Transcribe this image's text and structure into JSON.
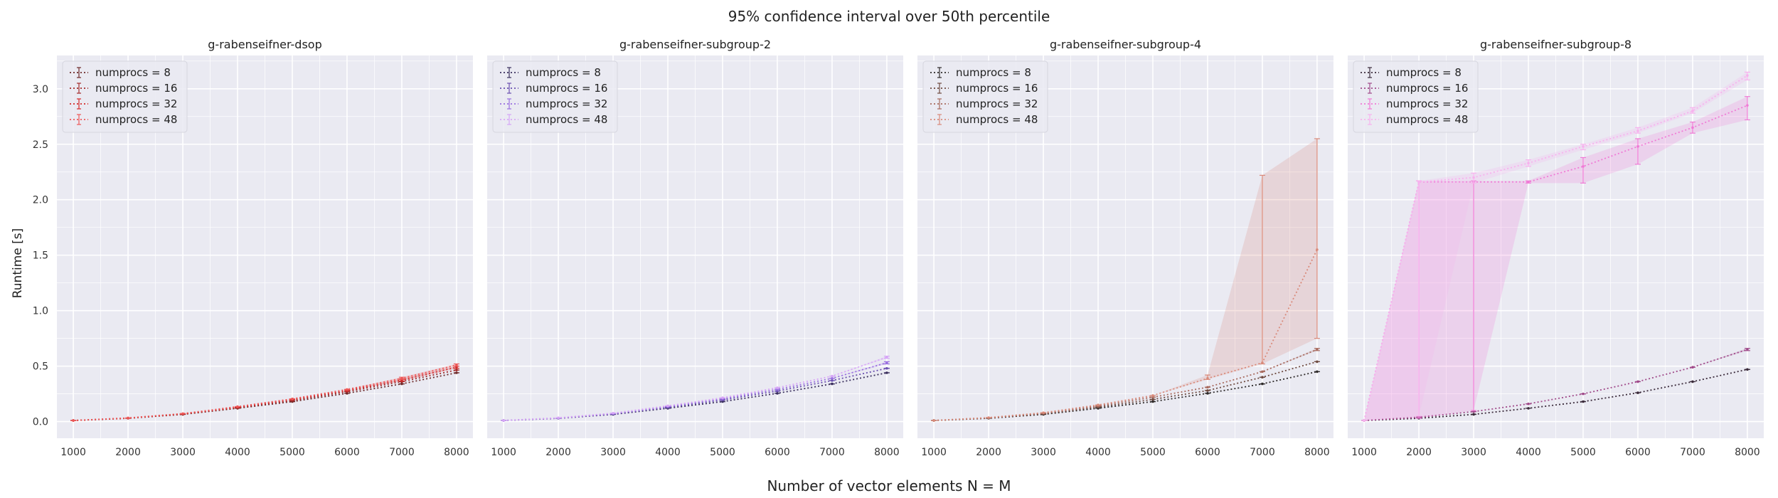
{
  "figure": {
    "title": "95% confidence interval over 50th percentile",
    "xlabel": "Number of vector elements N = M",
    "ylabel": "Runtime [s]"
  },
  "chart_data": [
    {
      "type": "line",
      "title": "g-rabenseifner-dsop",
      "x": [
        1000,
        2000,
        3000,
        4000,
        5000,
        6000,
        7000,
        8000
      ],
      "xticks": [
        1000,
        2000,
        3000,
        4000,
        5000,
        6000,
        7000,
        8000
      ],
      "yticks": [
        "0.0",
        "0.5",
        "1.0",
        "1.5",
        "2.0",
        "2.5",
        "3.0"
      ],
      "ylim": [
        -0.15,
        3.3
      ],
      "legend_position": "upper-left",
      "grid": true,
      "series": [
        {
          "name": "numprocs = 8",
          "color": "#6e2a2a",
          "median": [
            0.01,
            0.03,
            0.065,
            0.12,
            0.18,
            0.255,
            0.34,
            0.44
          ],
          "lower": [
            0.01,
            0.03,
            0.065,
            0.12,
            0.18,
            0.255,
            0.34,
            0.44
          ],
          "upper": [
            0.01,
            0.03,
            0.065,
            0.12,
            0.18,
            0.255,
            0.34,
            0.44
          ]
        },
        {
          "name": "numprocs = 16",
          "color": "#a32a2a",
          "median": [
            0.01,
            0.03,
            0.068,
            0.125,
            0.19,
            0.27,
            0.36,
            0.465
          ],
          "lower": [
            0.01,
            0.03,
            0.068,
            0.125,
            0.19,
            0.27,
            0.36,
            0.465
          ],
          "upper": [
            0.01,
            0.03,
            0.068,
            0.125,
            0.19,
            0.27,
            0.36,
            0.465
          ]
        },
        {
          "name": "numprocs = 32",
          "color": "#d42a2a",
          "median": [
            0.01,
            0.032,
            0.07,
            0.13,
            0.2,
            0.28,
            0.375,
            0.49
          ],
          "lower": [
            0.01,
            0.032,
            0.07,
            0.13,
            0.2,
            0.28,
            0.365,
            0.48
          ],
          "upper": [
            0.01,
            0.032,
            0.07,
            0.13,
            0.2,
            0.28,
            0.385,
            0.5
          ]
        },
        {
          "name": "numprocs = 48",
          "color": "#ee5858",
          "median": [
            0.01,
            0.033,
            0.072,
            0.135,
            0.205,
            0.29,
            0.39,
            0.51
          ],
          "lower": [
            0.01,
            0.033,
            0.072,
            0.135,
            0.205,
            0.29,
            0.38,
            0.5
          ],
          "upper": [
            0.01,
            0.033,
            0.072,
            0.135,
            0.205,
            0.29,
            0.4,
            0.52
          ]
        }
      ]
    },
    {
      "type": "line",
      "title": "g-rabenseifner-subgroup-2",
      "x": [
        1000,
        2000,
        3000,
        4000,
        5000,
        6000,
        7000,
        8000
      ],
      "xticks": [
        1000,
        2000,
        3000,
        4000,
        5000,
        6000,
        7000,
        8000
      ],
      "yticks": [],
      "ylim": [
        -0.15,
        3.3
      ],
      "legend_position": "upper-left",
      "grid": true,
      "series": [
        {
          "name": "numprocs = 8",
          "color": "#3a2f5e",
          "median": [
            0.01,
            0.03,
            0.065,
            0.12,
            0.18,
            0.255,
            0.34,
            0.44
          ],
          "lower": [
            0.01,
            0.03,
            0.065,
            0.12,
            0.18,
            0.255,
            0.34,
            0.44
          ],
          "upper": [
            0.01,
            0.03,
            0.065,
            0.12,
            0.18,
            0.255,
            0.34,
            0.44
          ]
        },
        {
          "name": "numprocs = 16",
          "color": "#6a4fb0",
          "median": [
            0.01,
            0.03,
            0.068,
            0.128,
            0.195,
            0.275,
            0.37,
            0.48
          ],
          "lower": [
            0.01,
            0.03,
            0.068,
            0.128,
            0.195,
            0.275,
            0.37,
            0.48
          ],
          "upper": [
            0.01,
            0.03,
            0.068,
            0.128,
            0.195,
            0.275,
            0.37,
            0.48
          ]
        },
        {
          "name": "numprocs = 32",
          "color": "#9a6fe0",
          "median": [
            0.01,
            0.032,
            0.072,
            0.135,
            0.205,
            0.29,
            0.39,
            0.53
          ],
          "lower": [
            0.01,
            0.032,
            0.072,
            0.135,
            0.205,
            0.29,
            0.39,
            0.52
          ],
          "upper": [
            0.01,
            0.032,
            0.072,
            0.135,
            0.205,
            0.29,
            0.39,
            0.54
          ]
        },
        {
          "name": "numprocs = 48",
          "color": "#d7a6f7",
          "median": [
            0.01,
            0.034,
            0.076,
            0.142,
            0.215,
            0.305,
            0.41,
            0.58
          ],
          "lower": [
            0.01,
            0.034,
            0.076,
            0.142,
            0.215,
            0.305,
            0.41,
            0.57
          ],
          "upper": [
            0.01,
            0.034,
            0.076,
            0.142,
            0.215,
            0.305,
            0.41,
            0.59
          ]
        }
      ]
    },
    {
      "type": "line",
      "title": "g-rabenseifner-subgroup-4",
      "x": [
        1000,
        2000,
        3000,
        4000,
        5000,
        6000,
        7000,
        8000
      ],
      "xticks": [
        1000,
        2000,
        3000,
        4000,
        5000,
        6000,
        7000,
        8000
      ],
      "yticks": [],
      "ylim": [
        -0.15,
        3.3
      ],
      "legend_position": "upper-left",
      "grid": true,
      "series": [
        {
          "name": "numprocs = 8",
          "color": "#2e2a2a",
          "median": [
            0.01,
            0.03,
            0.065,
            0.12,
            0.18,
            0.255,
            0.34,
            0.45
          ],
          "lower": [
            0.01,
            0.03,
            0.065,
            0.12,
            0.18,
            0.255,
            0.34,
            0.45
          ],
          "upper": [
            0.01,
            0.03,
            0.065,
            0.12,
            0.18,
            0.255,
            0.34,
            0.45
          ]
        },
        {
          "name": "numprocs = 16",
          "color": "#6e4a40",
          "median": [
            0.01,
            0.032,
            0.07,
            0.13,
            0.2,
            0.28,
            0.4,
            0.54
          ],
          "lower": [
            0.01,
            0.032,
            0.07,
            0.13,
            0.2,
            0.28,
            0.4,
            0.54
          ],
          "upper": [
            0.01,
            0.032,
            0.07,
            0.13,
            0.2,
            0.28,
            0.4,
            0.54
          ]
        },
        {
          "name": "numprocs = 32",
          "color": "#a86a5e",
          "median": [
            0.01,
            0.034,
            0.075,
            0.14,
            0.22,
            0.31,
            0.45,
            0.65
          ],
          "lower": [
            0.01,
            0.034,
            0.075,
            0.14,
            0.22,
            0.31,
            0.45,
            0.64
          ],
          "upper": [
            0.01,
            0.034,
            0.075,
            0.14,
            0.22,
            0.31,
            0.45,
            0.66
          ]
        },
        {
          "name": "numprocs = 48",
          "color": "#d98a7a",
          "median": [
            0.01,
            0.036,
            0.08,
            0.15,
            0.235,
            0.39,
            0.53,
            1.55
          ],
          "lower": [
            0.01,
            0.036,
            0.08,
            0.15,
            0.235,
            0.38,
            0.52,
            0.75
          ],
          "upper": [
            0.01,
            0.036,
            0.08,
            0.15,
            0.235,
            0.42,
            2.22,
            2.55
          ]
        }
      ]
    },
    {
      "type": "line",
      "title": "g-rabenseifner-subgroup-8",
      "x": [
        1000,
        2000,
        3000,
        4000,
        5000,
        6000,
        7000,
        8000
      ],
      "xticks": [
        1000,
        2000,
        3000,
        4000,
        5000,
        6000,
        7000,
        8000
      ],
      "yticks": [],
      "ylim": [
        -0.15,
        3.3
      ],
      "legend_position": "upper-left",
      "grid": true,
      "series": [
        {
          "name": "numprocs = 8",
          "color": "#3a2a3a",
          "median": [
            0.01,
            0.03,
            0.065,
            0.12,
            0.18,
            0.26,
            0.36,
            0.47
          ],
          "lower": [
            0.01,
            0.03,
            0.065,
            0.12,
            0.18,
            0.26,
            0.36,
            0.47
          ],
          "upper": [
            0.01,
            0.03,
            0.065,
            0.12,
            0.18,
            0.26,
            0.36,
            0.47
          ]
        },
        {
          "name": "numprocs = 16",
          "color": "#a04a8a",
          "median": [
            0.01,
            0.04,
            0.09,
            0.16,
            0.25,
            0.36,
            0.49,
            0.65
          ],
          "lower": [
            0.01,
            0.04,
            0.09,
            0.16,
            0.25,
            0.36,
            0.49,
            0.64
          ],
          "upper": [
            0.01,
            0.04,
            0.09,
            0.16,
            0.25,
            0.36,
            0.49,
            0.66
          ]
        },
        {
          "name": "numprocs = 32",
          "color": "#f07ad6",
          "median": [
            0.01,
            2.16,
            2.16,
            2.16,
            2.3,
            2.48,
            2.65,
            2.85
          ],
          "lower": [
            0.01,
            0.03,
            0.1,
            2.15,
            2.15,
            2.32,
            2.6,
            2.72
          ],
          "upper": [
            0.01,
            2.17,
            2.17,
            2.17,
            2.38,
            2.55,
            2.7,
            2.93
          ]
        },
        {
          "name": "numprocs = 48",
          "color": "#f7b2ee",
          "median": [
            0.01,
            2.16,
            2.2,
            2.33,
            2.48,
            2.62,
            2.8,
            3.12
          ],
          "lower": [
            0.01,
            0.05,
            2.15,
            2.3,
            2.45,
            2.6,
            2.78,
            3.08
          ],
          "upper": [
            0.01,
            2.17,
            2.24,
            2.36,
            2.5,
            2.65,
            2.83,
            3.15
          ]
        }
      ]
    }
  ]
}
